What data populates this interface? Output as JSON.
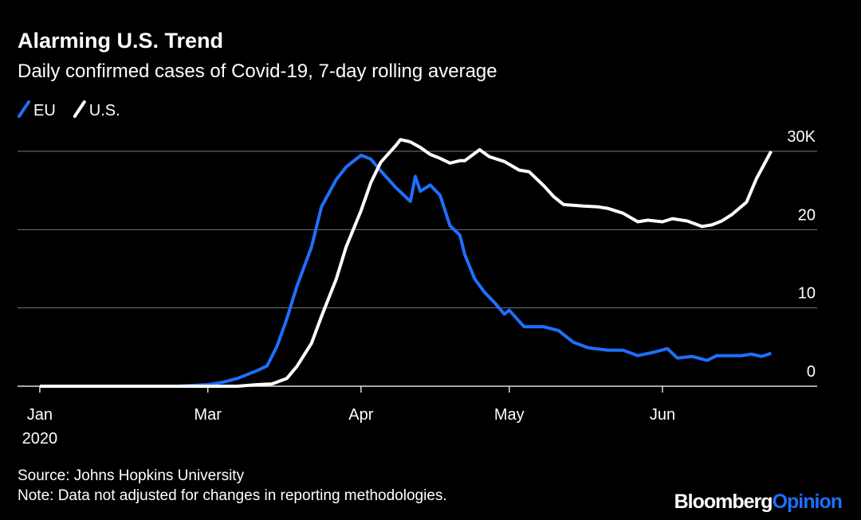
{
  "chart_data": {
    "type": "line",
    "title": "Alarming U.S. Trend",
    "subtitle": "Daily confirmed cases of Covid-19, 7-day rolling average",
    "xtick_sublabel": "2020",
    "source": "Source: Johns Hopkins University",
    "note": "Note: Data not adjusted for changes in reporting methodologies.",
    "brand": "Bloomberg",
    "brand_accent": "Opinion",
    "xlim": [
      22.5,
      184.3
    ],
    "xticks": [
      {
        "value": 27,
        "label": "Jan"
      },
      {
        "value": 61,
        "label": "Mar"
      },
      {
        "value": 92,
        "label": "Apr"
      },
      {
        "value": 122,
        "label": "May"
      },
      {
        "value": 153,
        "label": "Jun"
      }
    ],
    "ylim": [
      0,
      30
    ],
    "yticks": [
      0,
      10,
      20,
      {
        "value": 30,
        "label": "30K"
      }
    ],
    "grid": true,
    "legend": "top-left",
    "series": [
      {
        "name": "EU",
        "color": "#1f6fff",
        "x": [
          27,
          55,
          61,
          64,
          67,
          71,
          73,
          75,
          77,
          79,
          82,
          84,
          87,
          89,
          92,
          94,
          96,
          99,
          102,
          103,
          104,
          106,
          108,
          110,
          112,
          113,
          115,
          117,
          119,
          121,
          122,
          125,
          129,
          132,
          135,
          138,
          142,
          145,
          148,
          151,
          154,
          156,
          159,
          162,
          164,
          169,
          171,
          173,
          175
        ],
        "values": [
          0,
          0,
          0.2,
          0.5,
          1.0,
          2.0,
          2.6,
          5.1,
          8.6,
          12.7,
          17.8,
          22.9,
          26.4,
          28,
          29.5,
          29,
          27.5,
          25.4,
          23.6,
          26.8,
          24.9,
          25.7,
          24.4,
          20.5,
          19.3,
          16.8,
          13.7,
          12,
          10.7,
          9.2,
          9.7,
          7.6,
          7.6,
          7.1,
          5.6,
          4.9,
          4.6,
          4.6,
          3.9,
          4.3,
          4.8,
          3.6,
          3.8,
          3.3,
          3.9,
          3.9,
          4.1,
          3.8,
          4.2
        ]
      },
      {
        "name": "U.S.",
        "color": "#ffffff",
        "x": [
          27,
          67,
          71,
          74,
          77,
          79,
          82,
          84,
          87,
          89,
          92,
          94,
          96,
          99,
          100,
          102,
          104,
          106,
          108,
          110,
          112,
          113,
          116,
          118,
          121,
          124,
          126,
          129,
          131,
          133,
          137,
          140,
          142,
          145,
          148,
          150,
          153,
          155,
          158,
          161,
          163,
          165,
          167,
          170,
          172,
          175
        ],
        "values": [
          0,
          0,
          0.2,
          0.3,
          1.0,
          2.5,
          5.5,
          8.9,
          13.7,
          17.8,
          22.4,
          26,
          28.6,
          30.7,
          31.5,
          31.2,
          30.5,
          29.6,
          29.1,
          28.5,
          28.8,
          28.8,
          30.2,
          29.3,
          28.7,
          27.6,
          27.4,
          25.6,
          24.2,
          23.2,
          23.0,
          22.9,
          22.7,
          22.1,
          21,
          21.2,
          21,
          21.4,
          21.1,
          20.4,
          20.6,
          21.1,
          21.9,
          23.5,
          26.5,
          30
        ]
      }
    ]
  }
}
